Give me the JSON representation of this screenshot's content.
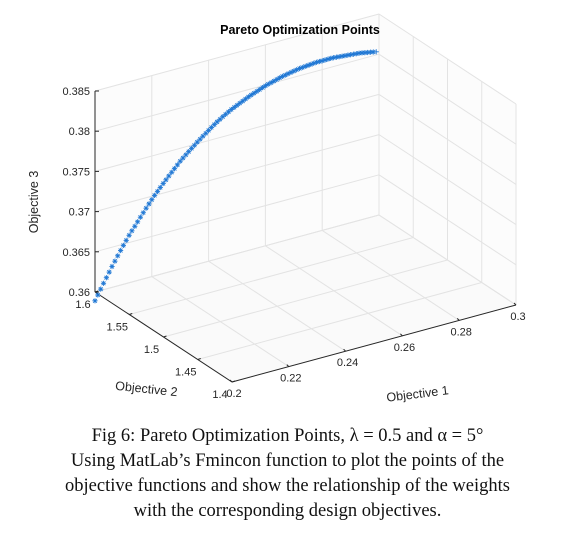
{
  "chart_data": {
    "type": "scatter3d",
    "title": "Pareto Optimization Points",
    "xlabel": "Objective 1",
    "ylabel": "Objective 2",
    "zlabel": "Objective 3",
    "xlim": [
      0.2,
      0.3
    ],
    "ylim": [
      1.4,
      1.6
    ],
    "zlim": [
      0.36,
      0.385
    ],
    "x_ticks": [
      "0.2",
      "0.22",
      "0.24",
      "0.26",
      "0.28",
      "0.3"
    ],
    "y_ticks": [
      "1.4",
      "1.45",
      "1.5",
      "1.55",
      "1.6"
    ],
    "z_ticks": [
      "0.36",
      "0.365",
      "0.37",
      "0.375",
      "0.38",
      "0.385"
    ],
    "grid": true,
    "marker": "asterisk",
    "marker_color": "#1f77d4",
    "series": [
      {
        "x": [
          0.2,
          0.203,
          0.206,
          0.209,
          0.212,
          0.215,
          0.218,
          0.221,
          0.224,
          0.227,
          0.23,
          0.233,
          0.236,
          0.239,
          0.242,
          0.245,
          0.248,
          0.251,
          0.254,
          0.257,
          0.26,
          0.263,
          0.266,
          0.269,
          0.272,
          0.275,
          0.278,
          0.281,
          0.284,
          0.287,
          0.29,
          0.293,
          0.296,
          0.299
        ],
        "y": [
          1.6,
          1.6,
          1.6,
          1.6,
          1.6,
          1.6,
          1.6,
          1.6,
          1.6,
          1.6,
          1.6,
          1.6,
          1.6,
          1.6,
          1.6,
          1.6,
          1.6,
          1.6,
          1.6,
          1.6,
          1.6,
          1.6,
          1.6,
          1.6,
          1.6,
          1.6,
          1.6,
          1.6,
          1.6,
          1.6,
          1.6,
          1.6,
          1.6,
          1.6
        ],
        "z": [
          0.3589,
          0.3608,
          0.3626,
          0.3643,
          0.3659,
          0.3673,
          0.3687,
          0.37,
          0.3712,
          0.3723,
          0.3734,
          0.3743,
          0.3752,
          0.376,
          0.3768,
          0.3775,
          0.3781,
          0.3786,
          0.3791,
          0.3795,
          0.3799,
          0.3802,
          0.3805,
          0.3807,
          0.3809,
          0.381,
          0.3811,
          0.3811,
          0.3811,
          0.381,
          0.3809,
          0.3808,
          0.3806,
          0.3804
        ]
      }
    ]
  },
  "caption": {
    "line1": "Fig 6: Pareto Optimization Points, λ = 0.5 and α = 5°",
    "line2": "Using MatLab’s Fmincon function to plot the points of the",
    "line3": "objective functions and show the relationship of the weights",
    "line4": "with the corresponding design objectives."
  }
}
